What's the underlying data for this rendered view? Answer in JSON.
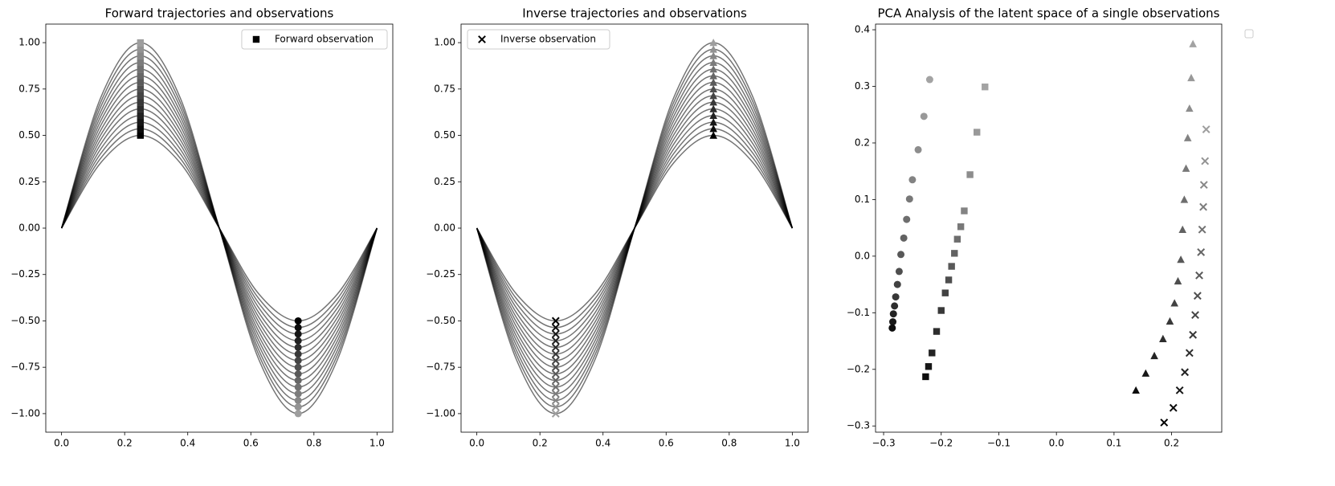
{
  "chart_data": [
    {
      "type": "line",
      "title": "Forward trajectories and observations",
      "x": [
        0,
        0.125,
        0.25,
        0.375,
        0.5,
        0.625,
        0.75,
        0.875,
        1
      ],
      "line_color": "#000000",
      "line_opacity": 0.55,
      "series": [
        {
          "values": [
            0,
            0.354,
            0.5,
            0.354,
            0,
            -0.354,
            -0.5,
            -0.354,
            0
          ]
        },
        {
          "values": [
            0,
            0.379,
            0.536,
            0.379,
            0,
            -0.379,
            -0.536,
            -0.379,
            0
          ]
        },
        {
          "values": [
            0,
            0.404,
            0.571,
            0.404,
            0,
            -0.404,
            -0.571,
            -0.404,
            0
          ]
        },
        {
          "values": [
            0,
            0.429,
            0.607,
            0.429,
            0,
            -0.429,
            -0.607,
            -0.429,
            0
          ]
        },
        {
          "values": [
            0,
            0.455,
            0.643,
            0.455,
            0,
            -0.455,
            -0.643,
            -0.455,
            0
          ]
        },
        {
          "values": [
            0,
            0.48,
            0.679,
            0.48,
            0,
            -0.48,
            -0.679,
            -0.48,
            0
          ]
        },
        {
          "values": [
            0,
            0.505,
            0.714,
            0.505,
            0,
            -0.505,
            -0.714,
            -0.505,
            0
          ]
        },
        {
          "values": [
            0,
            0.53,
            0.75,
            0.53,
            0,
            -0.53,
            -0.75,
            -0.53,
            0
          ]
        },
        {
          "values": [
            0,
            0.556,
            0.786,
            0.556,
            0,
            -0.556,
            -0.786,
            -0.556,
            0
          ]
        },
        {
          "values": [
            0,
            0.581,
            0.821,
            0.581,
            0,
            -0.581,
            -0.821,
            -0.581,
            0
          ]
        },
        {
          "values": [
            0,
            0.606,
            0.857,
            0.606,
            0,
            -0.606,
            -0.857,
            -0.606,
            0
          ]
        },
        {
          "values": [
            0,
            0.631,
            0.893,
            0.631,
            0,
            -0.631,
            -0.893,
            -0.631,
            0
          ]
        },
        {
          "values": [
            0,
            0.657,
            0.929,
            0.657,
            0,
            -0.657,
            -0.929,
            -0.657,
            0
          ]
        },
        {
          "values": [
            0,
            0.682,
            0.964,
            0.682,
            0,
            -0.682,
            -0.964,
            -0.682,
            0
          ]
        },
        {
          "values": [
            0,
            0.707,
            1,
            0.707,
            0,
            -0.707,
            -1,
            -0.707,
            0
          ]
        }
      ],
      "observations": [
        {
          "name": "Forward observation",
          "marker": "square",
          "x": 0.25,
          "values": [
            0.5,
            0.536,
            0.571,
            0.607,
            0.643,
            0.679,
            0.714,
            0.75,
            0.786,
            0.821,
            0.857,
            0.893,
            0.929,
            0.964,
            1
          ]
        },
        {
          "marker": "circle",
          "x": 0.75,
          "values": [
            -0.5,
            -0.536,
            -0.571,
            -0.607,
            -0.643,
            -0.679,
            -0.714,
            -0.75,
            -0.786,
            -0.821,
            -0.857,
            -0.893,
            -0.929,
            -0.964,
            -1
          ]
        }
      ],
      "marker_colors": [
        "#000000",
        "#9e9e9e"
      ],
      "xlim": [
        -0.05,
        1.05
      ],
      "ylim": [
        -1.1,
        1.1
      ],
      "xticks": [
        {
          "value": 0,
          "label": "0.0"
        },
        0.2,
        0.4,
        0.6,
        0.8,
        {
          "value": 1,
          "label": "1.0"
        }
      ],
      "yticks": [
        {
          "value": -1,
          "label": "−1.00"
        },
        {
          "value": -0.75,
          "label": "−0.75"
        },
        {
          "value": -0.5,
          "label": "−0.50"
        },
        {
          "value": -0.25,
          "label": "−0.25"
        },
        {
          "value": 0,
          "label": "0.00"
        },
        0.25,
        {
          "value": 0.5,
          "label": "0.50"
        },
        0.75,
        {
          "value": 1,
          "label": "1.00"
        }
      ],
      "legend": "upper right"
    },
    {
      "type": "line",
      "title": "Inverse trajectories and observations",
      "x": [
        0,
        0.125,
        0.25,
        0.375,
        0.5,
        0.625,
        0.75,
        0.875,
        1
      ],
      "line_color": "#000000",
      "line_opacity": 0.55,
      "series": [
        {
          "values": [
            0,
            -0.354,
            -0.5,
            -0.354,
            0,
            0.354,
            0.5,
            0.354,
            0
          ]
        },
        {
          "values": [
            0,
            -0.379,
            -0.536,
            -0.379,
            0,
            0.379,
            0.536,
            0.379,
            0
          ]
        },
        {
          "values": [
            0,
            -0.404,
            -0.571,
            -0.404,
            0,
            0.404,
            0.571,
            0.404,
            0
          ]
        },
        {
          "values": [
            0,
            -0.429,
            -0.607,
            -0.429,
            0,
            0.429,
            0.607,
            0.429,
            0
          ]
        },
        {
          "values": [
            0,
            -0.455,
            -0.643,
            -0.455,
            0,
            0.455,
            0.643,
            0.455,
            0
          ]
        },
        {
          "values": [
            0,
            -0.48,
            -0.679,
            -0.48,
            0,
            0.48,
            0.679,
            0.48,
            0
          ]
        },
        {
          "values": [
            0,
            -0.505,
            -0.714,
            -0.505,
            0,
            0.505,
            0.714,
            0.505,
            0
          ]
        },
        {
          "values": [
            0,
            -0.53,
            -0.75,
            -0.53,
            0,
            0.53,
            0.75,
            0.53,
            0
          ]
        },
        {
          "values": [
            0,
            -0.556,
            -0.786,
            -0.556,
            0,
            0.556,
            0.786,
            0.556,
            0
          ]
        },
        {
          "values": [
            0,
            -0.581,
            -0.821,
            -0.581,
            0,
            0.581,
            0.821,
            0.581,
            0
          ]
        },
        {
          "values": [
            0,
            -0.606,
            -0.857,
            -0.606,
            0,
            0.606,
            0.857,
            0.606,
            0
          ]
        },
        {
          "values": [
            0,
            -0.631,
            -0.893,
            -0.631,
            0,
            0.631,
            0.893,
            0.631,
            0
          ]
        },
        {
          "values": [
            0,
            -0.657,
            -0.929,
            -0.657,
            0,
            0.657,
            0.929,
            0.657,
            0
          ]
        },
        {
          "values": [
            0,
            -0.682,
            -0.964,
            -0.682,
            0,
            0.682,
            0.964,
            0.682,
            0
          ]
        },
        {
          "values": [
            0,
            -0.707,
            -1,
            -0.707,
            0,
            0.707,
            1,
            0.707,
            0
          ]
        }
      ],
      "observations": [
        {
          "name": "Inverse observation",
          "marker": "x",
          "x": 0.25,
          "values": [
            -0.5,
            -0.536,
            -0.571,
            -0.607,
            -0.643,
            -0.679,
            -0.714,
            -0.75,
            -0.786,
            -0.821,
            -0.857,
            -0.893,
            -0.929,
            -0.964,
            -1
          ]
        },
        {
          "marker": "triangle",
          "x": 0.75,
          "values": [
            0.5,
            0.536,
            0.571,
            0.607,
            0.643,
            0.679,
            0.714,
            0.75,
            0.786,
            0.821,
            0.857,
            0.893,
            0.929,
            0.964,
            1
          ]
        }
      ],
      "marker_colors": [
        "#000000",
        "#9e9e9e"
      ],
      "xlim": [
        -0.05,
        1.05
      ],
      "ylim": [
        -1.1,
        1.1
      ],
      "xticks": [
        {
          "value": 0,
          "label": "0.0"
        },
        0.2,
        0.4,
        0.6,
        0.8,
        {
          "value": 1,
          "label": "1.0"
        }
      ],
      "yticks": [
        {
          "value": -1,
          "label": "−1.00"
        },
        {
          "value": -0.75,
          "label": "−0.75"
        },
        {
          "value": -0.5,
          "label": "−0.50"
        },
        {
          "value": -0.25,
          "label": "−0.25"
        },
        {
          "value": 0,
          "label": "0.00"
        },
        0.25,
        {
          "value": 0.5,
          "label": "0.50"
        },
        0.75,
        {
          "value": 1,
          "label": "1.00"
        }
      ],
      "legend": "upper left"
    },
    {
      "type": "scatter",
      "title": "PCA Analysis of the latent space of a single observations",
      "series": [
        {
          "marker": "circle",
          "x": [
            -0.285,
            -0.284,
            -0.283,
            -0.281,
            -0.279,
            -0.276,
            -0.273,
            -0.27,
            -0.265,
            -0.26,
            -0.255,
            -0.25,
            -0.24,
            -0.23,
            -0.22
          ],
          "values": [
            -0.127,
            -0.116,
            -0.102,
            -0.088,
            -0.072,
            -0.05,
            -0.027,
            0.003,
            0.032,
            0.065,
            0.101,
            0.135,
            0.188,
            0.247,
            0.312
          ]
        },
        {
          "marker": "square",
          "x": [
            -0.227,
            -0.222,
            -0.216,
            -0.208,
            -0.2,
            -0.193,
            -0.187,
            -0.182,
            -0.177,
            -0.172,
            -0.166,
            -0.16,
            -0.15,
            -0.138,
            -0.124
          ],
          "values": [
            -0.213,
            -0.195,
            -0.171,
            -0.133,
            -0.096,
            -0.065,
            -0.042,
            -0.018,
            0.005,
            0.03,
            0.052,
            0.08,
            0.144,
            0.219,
            0.299
          ]
        },
        {
          "marker": "triangle",
          "x": [
            0.138,
            0.155,
            0.17,
            0.185,
            0.197,
            0.205,
            0.211,
            0.216,
            0.219,
            0.222,
            0.225,
            0.228,
            0.231,
            0.234,
            0.237
          ],
          "values": [
            -0.237,
            -0.207,
            -0.176,
            -0.146,
            -0.115,
            -0.083,
            -0.044,
            -0.006,
            0.047,
            0.1,
            0.155,
            0.209,
            0.261,
            0.315,
            0.375
          ]
        },
        {
          "marker": "x",
          "x": [
            0.187,
            0.203,
            0.214,
            0.223,
            0.231,
            0.237,
            0.241,
            0.245,
            0.248,
            0.251,
            0.253,
            0.255,
            0.256,
            0.258,
            0.26
          ],
          "values": [
            -0.294,
            -0.268,
            -0.237,
            -0.205,
            -0.171,
            -0.139,
            -0.104,
            -0.07,
            -0.034,
            0.007,
            0.047,
            0.087,
            0.126,
            0.168,
            0.224
          ]
        }
      ],
      "marker_colors": [
        "#000000",
        "#9e9e9e"
      ],
      "xlim": [
        -0.314,
        0.287
      ],
      "ylim": [
        -0.311,
        0.41
      ],
      "xticks": [
        {
          "value": -0.3,
          "label": "−0.3"
        },
        {
          "value": -0.2,
          "label": "−0.2"
        },
        {
          "value": -0.1,
          "label": "−0.1"
        },
        {
          "value": 0,
          "label": "0.0"
        },
        0.1,
        0.2
      ],
      "yticks": [
        {
          "value": -0.3,
          "label": "−0.3"
        },
        {
          "value": -0.2,
          "label": "−0.2"
        },
        {
          "value": -0.1,
          "label": "−0.1"
        },
        {
          "value": 0,
          "label": "0.0"
        },
        0.1,
        0.2,
        0.3,
        0.4
      ],
      "legend": "outside upper right"
    }
  ]
}
